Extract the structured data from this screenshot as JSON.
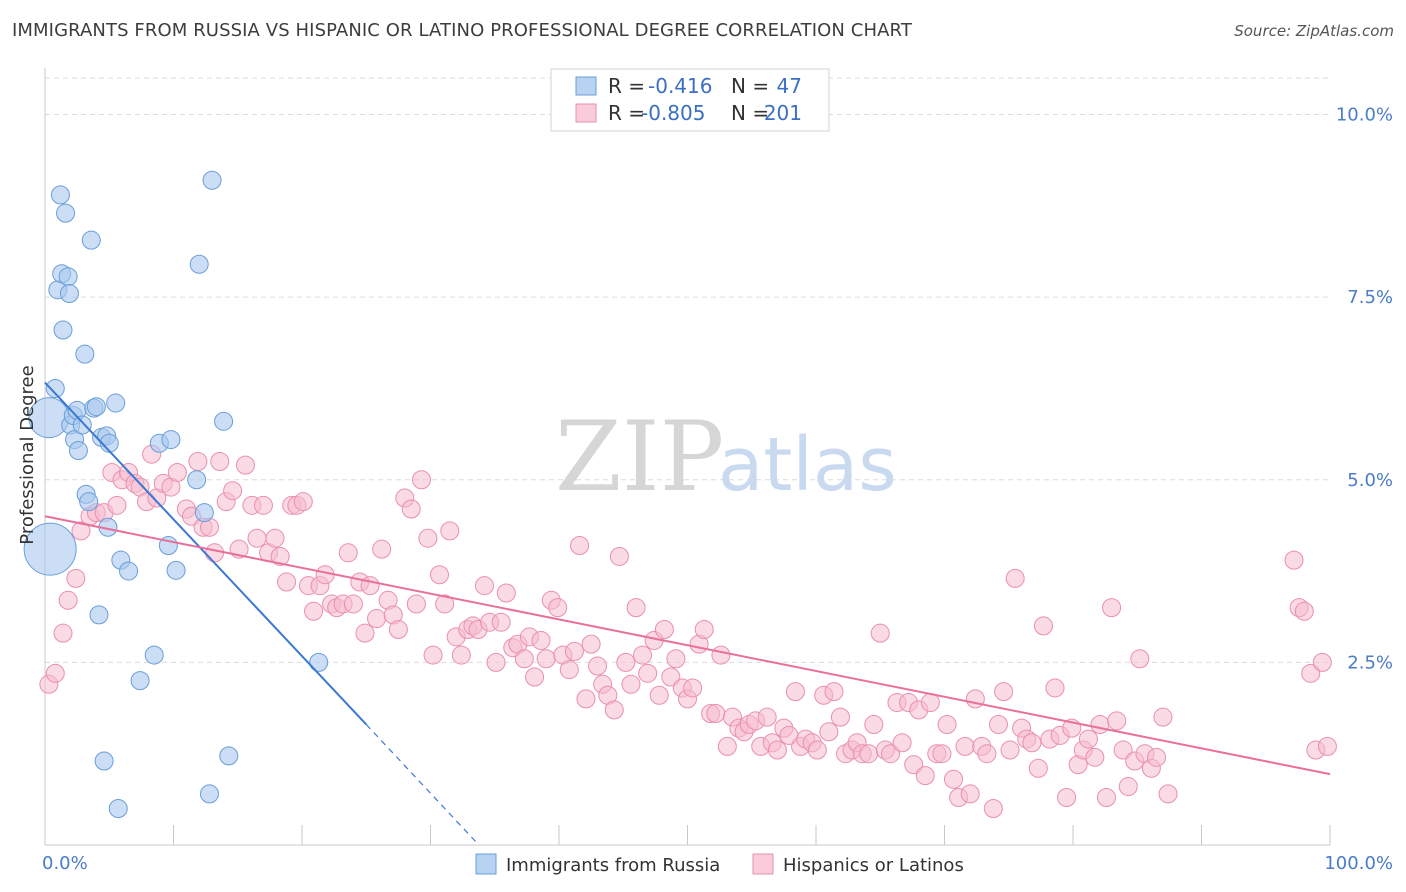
{
  "title": "IMMIGRANTS FROM RUSSIA VS HISPANIC OR LATINO PROFESSIONAL DEGREE CORRELATION CHART",
  "source": "Source: ZipAtlas.com",
  "watermark": {
    "zip": "ZIP",
    "atlas": "atlas"
  },
  "colors": {
    "blue_fill": "#a9c8ee",
    "blue_stroke": "#6a9ed8",
    "blue_line": "#3a78d4",
    "pink_fill": "#f6bcd0",
    "pink_stroke": "#ea8fb0",
    "pink_line": "#e8709a",
    "grid": "#dcdcdc",
    "axis_text": "#4a7cc8"
  },
  "legend": {
    "r_label": "R =",
    "n_label": "N =",
    "rows": [
      {
        "r": "-0.416",
        "n": "47"
      },
      {
        "r": "-0.805",
        "n": "201"
      }
    ]
  },
  "chart_data": {
    "type": "scatter",
    "xlabel": "",
    "ylabel": "Professional Degree",
    "xlim": [
      0,
      100
    ],
    "ylim": [
      0,
      10.5
    ],
    "x_tick_labels": [
      "0.0%",
      "100.0%"
    ],
    "y_ticks": [
      2.5,
      5.0,
      7.5,
      10.0
    ],
    "y_tick_labels": [
      "2.5%",
      "5.0%",
      "7.5%",
      "10.0%"
    ],
    "grid": true,
    "legend_position": "top-center",
    "series": [
      {
        "name": "Immigrants from Russia",
        "trend": {
          "x": [
            0,
            25
          ],
          "y": [
            6.33,
            1.65
          ],
          "dashed_to": [
            33.5,
            0.05
          ]
        },
        "points": [
          [
            0.3,
            5.85,
            20
          ],
          [
            0.4,
            4.05,
            26
          ],
          [
            0.8,
            6.25,
            9
          ],
          [
            1.0,
            7.6,
            9
          ],
          [
            1.2,
            8.9,
            9
          ],
          [
            1.3,
            7.82,
            9
          ],
          [
            1.4,
            7.05,
            9
          ],
          [
            1.6,
            8.65,
            9
          ],
          [
            1.8,
            7.78,
            9
          ],
          [
            1.9,
            7.55,
            9
          ],
          [
            2.0,
            5.75,
            9
          ],
          [
            2.2,
            5.88,
            9
          ],
          [
            2.3,
            5.55,
            9
          ],
          [
            2.5,
            5.95,
            9
          ],
          [
            2.6,
            5.4,
            9
          ],
          [
            2.9,
            5.75,
            9
          ],
          [
            3.1,
            6.72,
            9
          ],
          [
            3.2,
            4.8,
            9
          ],
          [
            3.4,
            4.7,
            9
          ],
          [
            3.6,
            8.28,
            9
          ],
          [
            3.8,
            5.98,
            9
          ],
          [
            4.0,
            6.0,
            9
          ],
          [
            4.2,
            3.15,
            9
          ],
          [
            4.4,
            5.58,
            9
          ],
          [
            4.6,
            1.15,
            9
          ],
          [
            4.8,
            5.6,
            9
          ],
          [
            4.9,
            4.35,
            9
          ],
          [
            5.0,
            5.5,
            9
          ],
          [
            5.5,
            6.05,
            9
          ],
          [
            5.7,
            0.5,
            9
          ],
          [
            5.9,
            3.9,
            9
          ],
          [
            6.5,
            3.75,
            9
          ],
          [
            7.4,
            2.25,
            9
          ],
          [
            8.5,
            2.6,
            9
          ],
          [
            8.9,
            5.5,
            9
          ],
          [
            9.6,
            4.1,
            9
          ],
          [
            9.8,
            5.55,
            9
          ],
          [
            10.2,
            3.76,
            9
          ],
          [
            11.8,
            5.0,
            9
          ],
          [
            12.0,
            7.95,
            9
          ],
          [
            12.4,
            4.55,
            9
          ],
          [
            12.8,
            0.7,
            9
          ],
          [
            13.0,
            9.1,
            9
          ],
          [
            13.9,
            5.8,
            9
          ],
          [
            14.3,
            1.22,
            9
          ],
          [
            21.3,
            2.5,
            9
          ]
        ]
      },
      {
        "name": "Hispanics or Latinos",
        "trend": {
          "x": [
            0,
            100
          ],
          "y": [
            4.5,
            0.97
          ]
        },
        "points": [
          [
            0.3,
            2.2
          ],
          [
            0.8,
            2.35
          ],
          [
            1.4,
            2.9
          ],
          [
            1.8,
            3.35
          ],
          [
            2.4,
            3.65
          ],
          [
            2.8,
            4.3
          ],
          [
            3.5,
            4.5
          ],
          [
            4.0,
            4.55
          ],
          [
            4.6,
            4.55
          ],
          [
            5.2,
            5.1
          ],
          [
            5.6,
            4.65
          ],
          [
            6.0,
            5.0
          ],
          [
            6.5,
            5.1
          ],
          [
            7.0,
            4.95
          ],
          [
            7.4,
            4.9
          ],
          [
            7.9,
            4.7
          ],
          [
            8.3,
            5.35
          ],
          [
            8.7,
            4.75
          ],
          [
            9.2,
            4.95
          ],
          [
            9.8,
            4.9
          ],
          [
            10.3,
            5.1
          ],
          [
            11.0,
            4.6
          ],
          [
            11.4,
            4.5
          ],
          [
            11.9,
            5.25
          ],
          [
            12.3,
            4.35
          ],
          [
            12.8,
            4.35
          ],
          [
            13.2,
            4.0
          ],
          [
            13.6,
            5.25
          ],
          [
            14.1,
            4.7
          ],
          [
            14.6,
            4.85
          ],
          [
            15.1,
            4.05
          ],
          [
            15.6,
            5.2
          ],
          [
            16.1,
            4.65
          ],
          [
            16.5,
            4.2
          ],
          [
            17.0,
            4.65
          ],
          [
            17.4,
            4.0
          ],
          [
            17.9,
            4.2
          ],
          [
            18.3,
            3.95
          ],
          [
            18.8,
            3.6
          ],
          [
            19.2,
            4.65
          ],
          [
            19.6,
            4.65
          ],
          [
            20.1,
            4.7
          ],
          [
            20.5,
            3.55
          ],
          [
            20.9,
            3.2
          ],
          [
            21.4,
            3.55
          ],
          [
            21.8,
            3.7
          ],
          [
            22.3,
            3.3
          ],
          [
            22.7,
            3.25
          ],
          [
            23.2,
            3.3
          ],
          [
            23.6,
            4.0
          ],
          [
            24.0,
            3.3
          ],
          [
            24.5,
            3.6
          ],
          [
            24.9,
            2.9
          ],
          [
            25.3,
            3.55
          ],
          [
            25.8,
            3.1
          ],
          [
            26.2,
            4.05
          ],
          [
            26.7,
            3.35
          ],
          [
            27.1,
            3.15
          ],
          [
            27.5,
            2.95
          ],
          [
            28.0,
            4.75
          ],
          [
            28.5,
            4.6
          ],
          [
            28.9,
            3.3
          ],
          [
            29.3,
            5.0
          ],
          [
            29.8,
            4.2
          ],
          [
            30.2,
            2.6
          ],
          [
            30.7,
            3.7
          ],
          [
            31.1,
            3.3
          ],
          [
            31.5,
            4.3
          ],
          [
            32.0,
            2.85
          ],
          [
            32.4,
            2.6
          ],
          [
            32.9,
            2.95
          ],
          [
            33.3,
            3.0
          ],
          [
            33.7,
            2.95
          ],
          [
            34.2,
            3.55
          ],
          [
            34.6,
            3.05
          ],
          [
            35.1,
            2.5
          ],
          [
            35.5,
            3.05
          ],
          [
            35.9,
            3.45
          ],
          [
            36.4,
            2.7
          ],
          [
            36.8,
            2.75
          ],
          [
            37.3,
            2.55
          ],
          [
            37.7,
            2.85
          ],
          [
            38.1,
            2.3
          ],
          [
            38.6,
            2.8
          ],
          [
            39.0,
            2.55
          ],
          [
            39.4,
            3.35
          ],
          [
            39.9,
            3.25
          ],
          [
            40.3,
            2.6
          ],
          [
            40.8,
            2.4
          ],
          [
            41.2,
            2.65
          ],
          [
            41.6,
            4.1
          ],
          [
            42.1,
            2.0
          ],
          [
            42.5,
            2.75
          ],
          [
            43.0,
            2.45
          ],
          [
            43.4,
            2.2
          ],
          [
            43.8,
            2.05
          ],
          [
            44.3,
            1.85
          ],
          [
            44.7,
            3.95
          ],
          [
            45.2,
            2.5
          ],
          [
            45.6,
            2.2
          ],
          [
            46.0,
            3.25
          ],
          [
            46.5,
            2.6
          ],
          [
            46.9,
            2.35
          ],
          [
            47.4,
            2.8
          ],
          [
            47.8,
            2.05
          ],
          [
            48.2,
            2.95
          ],
          [
            48.7,
            2.3
          ],
          [
            49.1,
            2.55
          ],
          [
            49.6,
            2.15
          ],
          [
            50.0,
            2.0
          ],
          [
            50.4,
            2.15
          ],
          [
            50.9,
            2.75
          ],
          [
            51.3,
            2.95
          ],
          [
            51.8,
            1.8
          ],
          [
            52.2,
            1.8
          ],
          [
            52.6,
            2.6
          ],
          [
            53.1,
            1.35
          ],
          [
            53.5,
            1.75
          ],
          [
            54.0,
            1.6
          ],
          [
            54.4,
            1.55
          ],
          [
            54.8,
            1.65
          ],
          [
            55.3,
            1.7
          ],
          [
            55.7,
            1.35
          ],
          [
            56.2,
            1.75
          ],
          [
            56.6,
            1.4
          ],
          [
            57.0,
            1.3
          ],
          [
            57.5,
            1.6
          ],
          [
            57.9,
            1.5
          ],
          [
            58.4,
            2.1
          ],
          [
            58.8,
            1.35
          ],
          [
            59.2,
            1.45
          ],
          [
            59.7,
            1.4
          ],
          [
            60.1,
            1.3
          ],
          [
            60.6,
            2.05
          ],
          [
            61.0,
            1.55
          ],
          [
            61.4,
            2.1
          ],
          [
            61.9,
            1.75
          ],
          [
            62.3,
            1.25
          ],
          [
            62.8,
            1.3
          ],
          [
            63.2,
            1.4
          ],
          [
            63.6,
            1.25
          ],
          [
            64.1,
            1.25
          ],
          [
            64.5,
            1.65
          ],
          [
            65.0,
            2.9
          ],
          [
            65.4,
            1.3
          ],
          [
            65.8,
            1.25
          ],
          [
            66.3,
            1.95
          ],
          [
            66.7,
            1.4
          ],
          [
            67.2,
            1.95
          ],
          [
            67.6,
            1.1
          ],
          [
            68.0,
            1.85
          ],
          [
            68.5,
            0.95
          ],
          [
            68.9,
            1.95
          ],
          [
            69.4,
            1.25
          ],
          [
            69.8,
            1.25
          ],
          [
            70.2,
            1.65
          ],
          [
            70.7,
            0.9
          ],
          [
            71.1,
            0.65
          ],
          [
            71.6,
            1.35
          ],
          [
            72.0,
            0.7
          ],
          [
            72.4,
            2.0
          ],
          [
            72.9,
            1.35
          ],
          [
            73.3,
            1.25
          ],
          [
            73.8,
            0.5
          ],
          [
            74.2,
            1.65
          ],
          [
            74.6,
            2.1
          ],
          [
            75.1,
            1.3
          ],
          [
            75.5,
            3.65
          ],
          [
            76.0,
            1.6
          ],
          [
            76.4,
            1.45
          ],
          [
            76.8,
            1.4
          ],
          [
            77.3,
            1.05
          ],
          [
            77.7,
            3.0
          ],
          [
            78.2,
            1.45
          ],
          [
            78.6,
            2.15
          ],
          [
            79.0,
            1.5
          ],
          [
            79.5,
            0.65
          ],
          [
            79.9,
            1.6
          ],
          [
            80.4,
            1.1
          ],
          [
            80.8,
            1.3
          ],
          [
            81.2,
            1.45
          ],
          [
            81.7,
            1.2
          ],
          [
            82.1,
            1.65
          ],
          [
            82.6,
            0.65
          ],
          [
            83.0,
            3.25
          ],
          [
            83.4,
            1.7
          ],
          [
            83.9,
            1.3
          ],
          [
            84.3,
            0.8
          ],
          [
            84.8,
            1.15
          ],
          [
            85.2,
            2.55
          ],
          [
            85.6,
            1.25
          ],
          [
            86.1,
            1.05
          ],
          [
            86.5,
            1.2
          ],
          [
            87.0,
            1.75
          ],
          [
            87.4,
            0.7
          ],
          [
            97.2,
            3.9
          ],
          [
            97.6,
            3.25
          ],
          [
            98.0,
            3.2
          ],
          [
            98.5,
            2.35
          ],
          [
            98.9,
            1.3
          ],
          [
            99.4,
            2.5
          ],
          [
            99.8,
            1.35
          ]
        ]
      }
    ]
  },
  "bottom_legend": [
    {
      "label": "Immigrants from Russia"
    },
    {
      "label": "Hispanics or Latinos"
    }
  ]
}
